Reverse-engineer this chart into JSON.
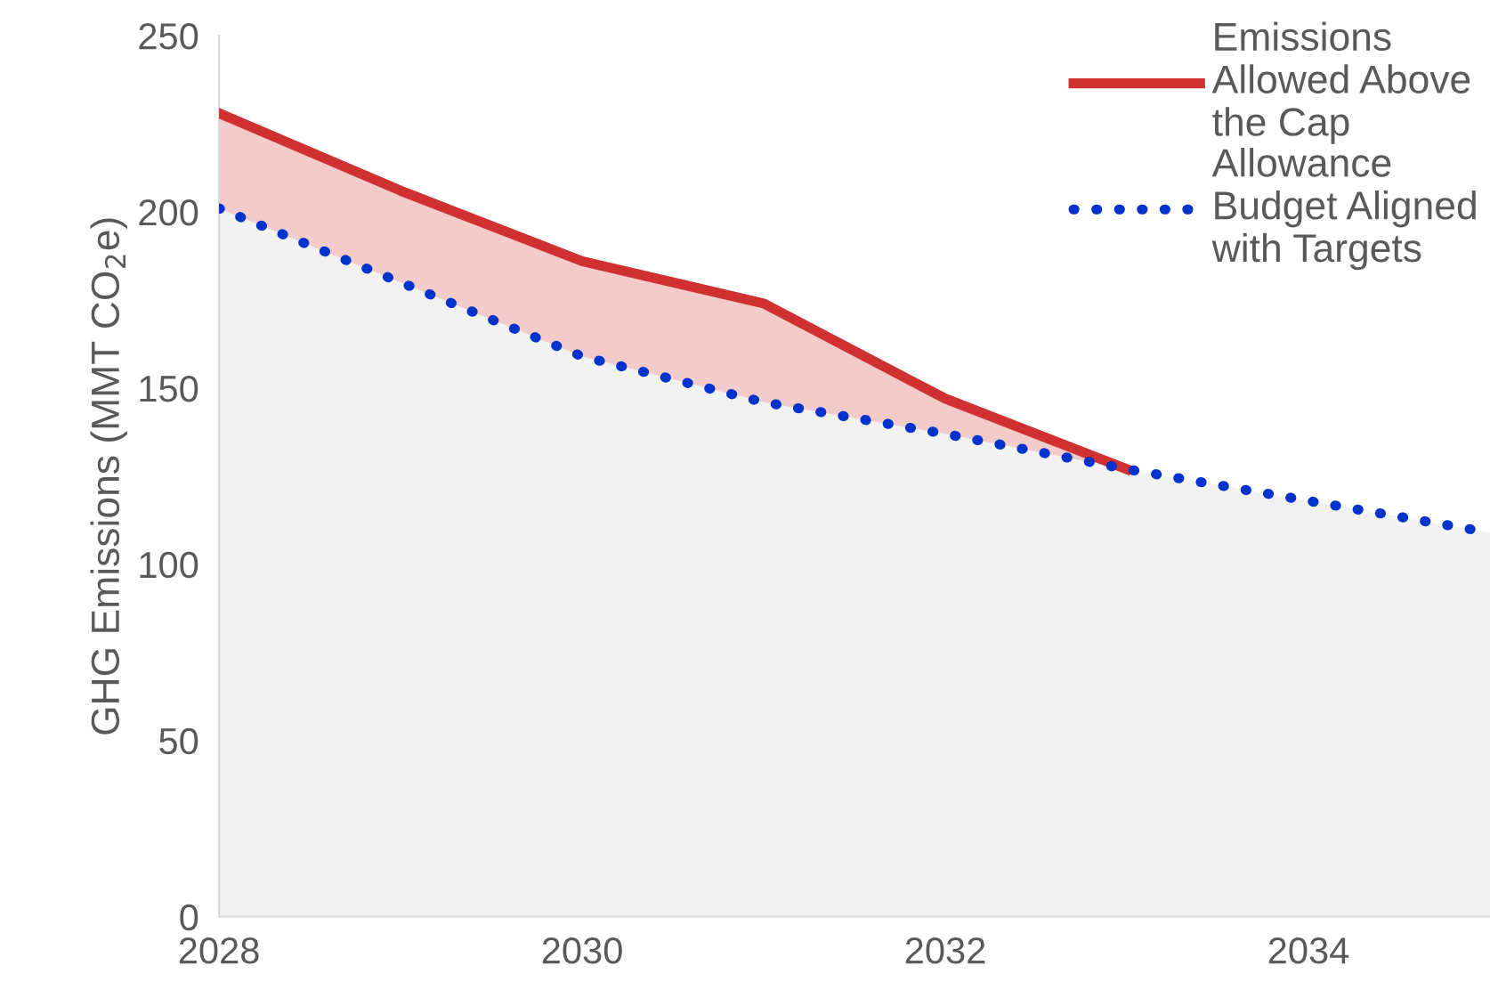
{
  "chart_data": {
    "type": "line",
    "ylabel": "GHG Emissions (MMT CO$_{2}$e)",
    "x": [
      2028,
      2029,
      2030,
      2031,
      2032,
      2033,
      2034,
      2035
    ],
    "series": [
      {
        "name": "Emissions Allowed Above the Cap",
        "color": "#d03030",
        "line_style": "solid",
        "values": [
          228,
          206,
          186,
          174,
          147,
          127,
          null,
          null
        ],
        "lower": [
          201,
          180,
          159,
          146,
          137,
          127,
          null,
          null
        ],
        "upper": [
          228,
          206,
          186,
          174,
          147,
          127,
          null,
          null
        ]
      },
      {
        "name": "Allowance Budget Aligned with Targets",
        "type": "area",
        "color": "#0033cc",
        "line_style": "dotted",
        "values": [
          201,
          180,
          159,
          146,
          137,
          127,
          118,
          109
        ]
      }
    ],
    "xlim": [
      2028,
      2035
    ],
    "xticks": [
      2028,
      2030,
      2032,
      2034
    ],
    "ylim": [
      0,
      250
    ],
    "yticks": [
      0,
      50,
      100,
      150,
      200,
      250
    ],
    "grid": false,
    "legend": "top right",
    "marker": "none"
  }
}
